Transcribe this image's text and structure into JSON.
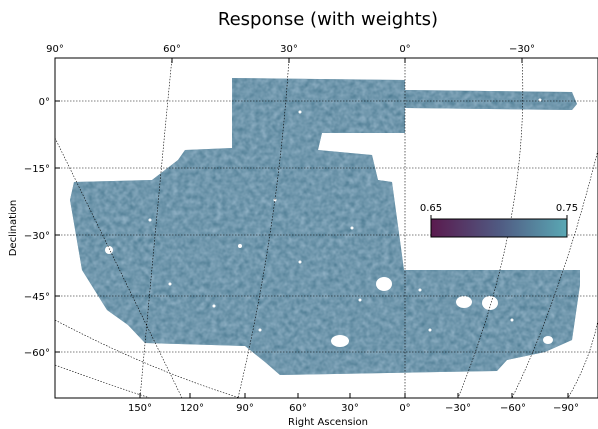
{
  "title": "Response (with weights)",
  "xlabel": "Right Ascension",
  "ylabel": "Declination",
  "top_ticks": [
    "90°",
    "60°",
    "30°",
    "0°",
    "−30°"
  ],
  "bottom_ticks": [
    "150°",
    "120°",
    "90°",
    "60°",
    "30°",
    "0°",
    "−30°",
    "−60°",
    "−90°"
  ],
  "left_ticks": [
    "0°",
    "−15°",
    "−30°",
    "−45°",
    "−60°"
  ],
  "colorbar": {
    "min_label": "0.65",
    "max_label": "0.75",
    "min": 0.65,
    "max": 0.75
  },
  "colors": {
    "low": "#5a1a4e",
    "mid": "#505a82",
    "high": "#5aa8b4",
    "footprint": "#4f7d94"
  }
}
